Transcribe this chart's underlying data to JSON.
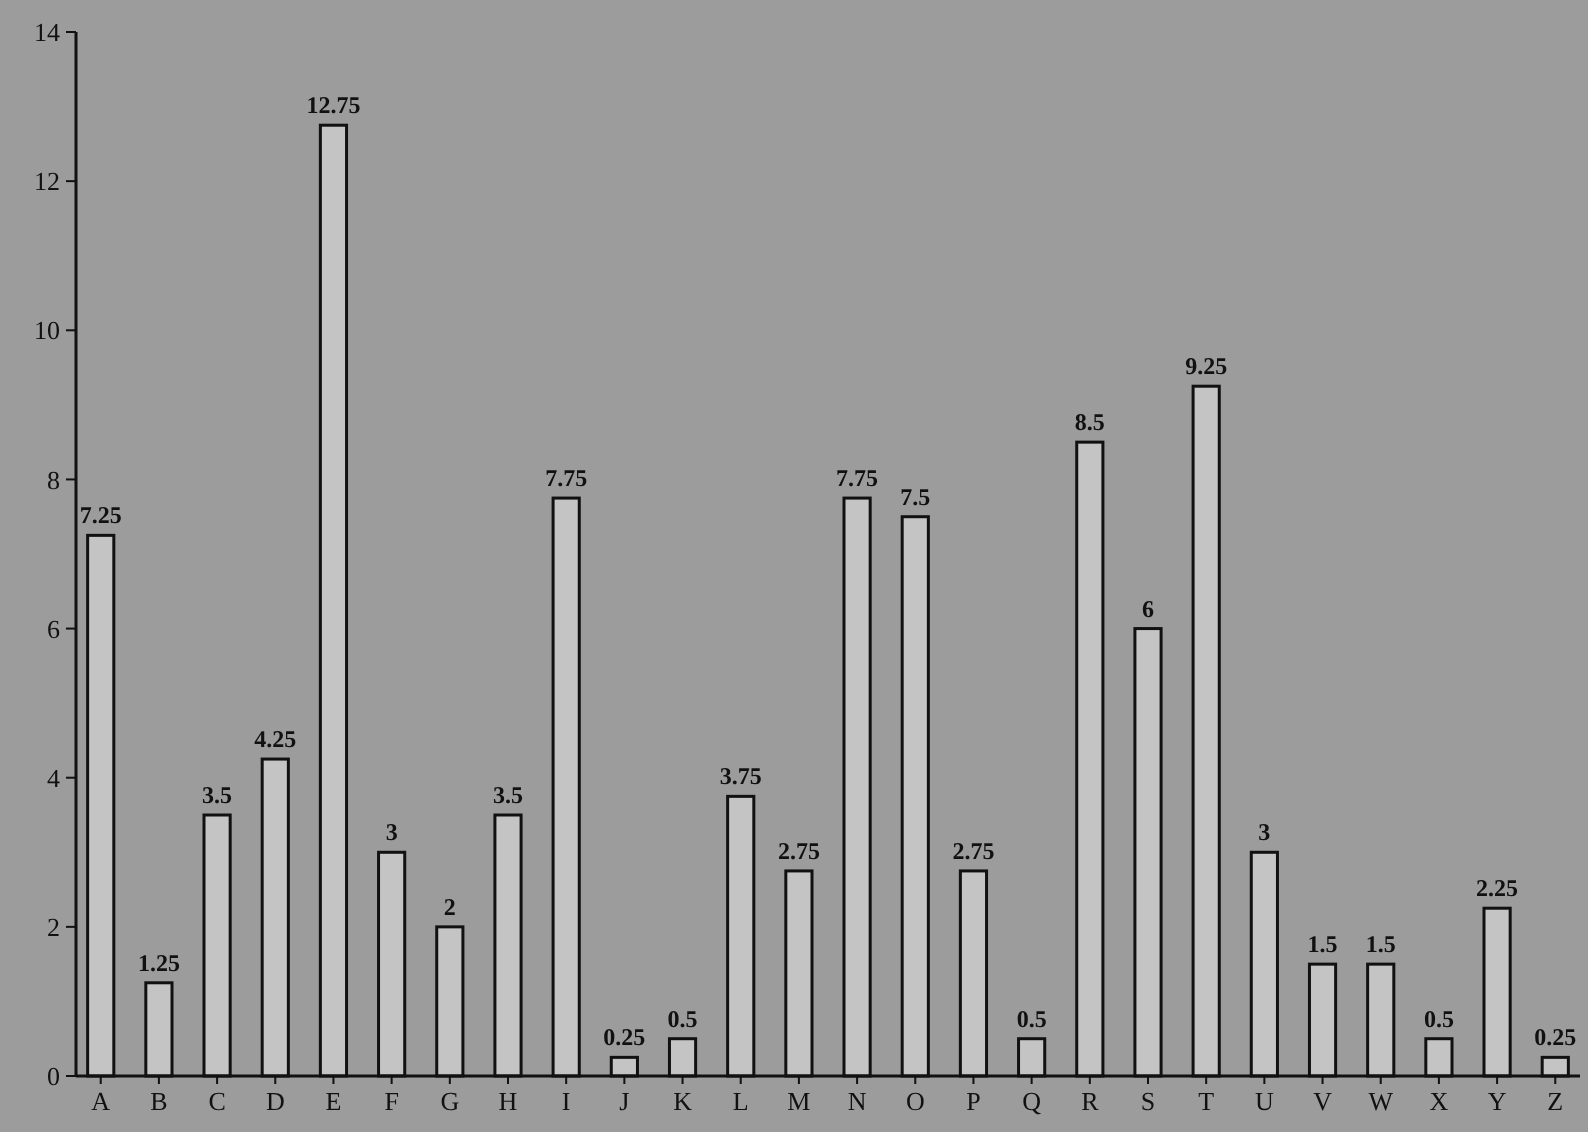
{
  "chart_data": {
    "type": "bar",
    "categories": [
      "A",
      "B",
      "C",
      "D",
      "E",
      "F",
      "G",
      "H",
      "I",
      "J",
      "K",
      "L",
      "M",
      "N",
      "O",
      "P",
      "Q",
      "R",
      "S",
      "T",
      "U",
      "V",
      "W",
      "X",
      "Y",
      "Z"
    ],
    "values": [
      7.25,
      1.25,
      3.5,
      4.25,
      12.75,
      3,
      2,
      3.5,
      7.75,
      0.25,
      0.5,
      3.75,
      2.75,
      7.75,
      7.5,
      2.75,
      0.5,
      8.5,
      6,
      9.25,
      3,
      1.5,
      1.5,
      0.5,
      2.25,
      0.25
    ],
    "color": "#c4c4c4",
    "ylim": [
      0,
      14
    ],
    "yticks": [
      0,
      2,
      4,
      6,
      8,
      10,
      12,
      14
    ],
    "data_labels": true,
    "grid": false
  }
}
